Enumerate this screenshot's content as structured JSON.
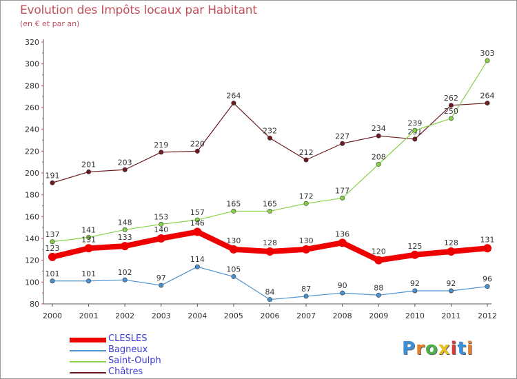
{
  "title": "Evolution des Impôts locaux par Habitant",
  "subtitle": "(en € et par an)",
  "logo": "Proxiti",
  "chart_data": {
    "type": "line",
    "title": "Evolution des Impôts locaux par Habitant",
    "subtitle": "(en € et par an)",
    "xlabel": "",
    "ylabel": "",
    "ylim": [
      80,
      320
    ],
    "yticks": [
      80,
      100,
      120,
      140,
      160,
      180,
      200,
      220,
      240,
      260,
      280,
      300,
      320
    ],
    "categories": [
      "2000",
      "2001",
      "2002",
      "2003",
      "2004",
      "2005",
      "2006",
      "2007",
      "2008",
      "2009",
      "2010",
      "2011",
      "2012"
    ],
    "grid": false,
    "legend_position": "bottom-left",
    "series": [
      {
        "name": "Châtres",
        "color": "#6b1a1f",
        "values": [
          191,
          201,
          203,
          219,
          220,
          264,
          232,
          212,
          227,
          234,
          231,
          262,
          264
        ]
      },
      {
        "name": "Saint-Oulph",
        "color": "#88d048",
        "values": [
          137,
          141,
          148,
          153,
          157,
          165,
          165,
          172,
          177,
          208,
          239,
          250,
          303
        ]
      },
      {
        "name": "Bagneux",
        "color": "#4a90d0",
        "values": [
          101,
          101,
          102,
          97,
          114,
          105,
          84,
          87,
          90,
          88,
          92,
          92,
          96
        ]
      },
      {
        "name": "CLESLES",
        "color": "#ee0000",
        "values": [
          123,
          131,
          133,
          140,
          146,
          130,
          128,
          130,
          136,
          120,
          125,
          128,
          131
        ]
      }
    ],
    "legend": [
      "CLESLES",
      "Bagneux",
      "Saint-Oulph",
      "Châtres"
    ]
  }
}
